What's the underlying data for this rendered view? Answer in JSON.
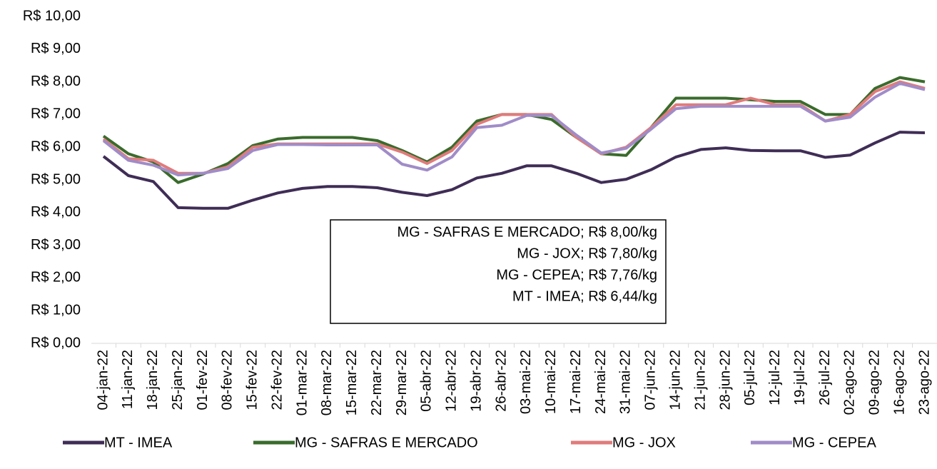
{
  "chart_data": {
    "type": "line",
    "categories": [
      "04-jan-22",
      "11-jan-22",
      "18-jan-22",
      "25-jan-22",
      "01-fev-22",
      "08-fev-22",
      "15-fev-22",
      "22-fev-22",
      "01-mar-22",
      "08-mar-22",
      "15-mar-22",
      "22-mar-22",
      "29-mar-22",
      "05-abr-22",
      "12-abr-22",
      "19-abr-22",
      "26-abr-22",
      "03-mai-22",
      "10-mai-22",
      "17-mai-22",
      "24-mai-22",
      "31-mai-22",
      "07-jun-22",
      "14-jun-22",
      "21-jun-22",
      "28-jun-22",
      "05-jul-22",
      "12-jul-22",
      "19-jul-22",
      "26-jul-22",
      "02-ago-22",
      "09-ago-22",
      "16-ago-22",
      "23-ago-22"
    ],
    "series": [
      {
        "name": "MT - IMEA",
        "color": "#3f2d56",
        "values": [
          5.72,
          5.13,
          4.95,
          4.15,
          4.13,
          4.13,
          4.38,
          4.6,
          4.74,
          4.8,
          4.8,
          4.76,
          4.62,
          4.52,
          4.7,
          5.06,
          5.2,
          5.43,
          5.43,
          5.2,
          4.92,
          5.02,
          5.31,
          5.7,
          5.93,
          5.98,
          5.9,
          5.89,
          5.89,
          5.69,
          5.76,
          6.13,
          6.46,
          6.44
        ]
      },
      {
        "name": "MG - SAFRAS E MERCADO",
        "color": "#3a6b2c",
        "values": [
          6.34,
          5.8,
          5.55,
          4.92,
          5.18,
          5.5,
          6.05,
          6.25,
          6.3,
          6.3,
          6.3,
          6.2,
          5.9,
          5.55,
          6.0,
          6.8,
          7.0,
          7.0,
          6.85,
          6.3,
          5.8,
          5.75,
          6.6,
          7.5,
          7.5,
          7.5,
          7.45,
          7.4,
          7.4,
          7.0,
          7.0,
          7.8,
          8.13,
          8.0
        ]
      },
      {
        "name": "MG - JOX",
        "color": "#e07b7b",
        "values": [
          6.25,
          5.65,
          5.6,
          5.2,
          5.2,
          5.4,
          6.0,
          6.1,
          6.1,
          6.1,
          6.1,
          6.1,
          5.85,
          5.5,
          5.9,
          6.7,
          7.0,
          7.0,
          7.0,
          6.3,
          5.8,
          6.0,
          6.6,
          7.3,
          7.3,
          7.3,
          7.5,
          7.3,
          7.3,
          6.8,
          7.0,
          7.7,
          8.0,
          7.8
        ]
      },
      {
        "name": "MG - CEPEA",
        "color": "#a08cc8",
        "values": [
          6.2,
          5.6,
          5.45,
          5.15,
          5.2,
          5.35,
          5.9,
          6.08,
          6.08,
          6.07,
          6.07,
          6.07,
          5.48,
          5.3,
          5.7,
          6.6,
          6.67,
          6.97,
          6.97,
          6.37,
          5.82,
          5.97,
          6.55,
          7.18,
          7.25,
          7.25,
          7.25,
          7.25,
          7.25,
          6.8,
          6.92,
          7.53,
          7.95,
          7.76
        ]
      }
    ],
    "ylim": [
      0,
      10
    ],
    "yticks": [
      {
        "value": 0,
        "label": "R$ 0,00"
      },
      {
        "value": 1,
        "label": "R$ 1,00"
      },
      {
        "value": 2,
        "label": "R$ 2,00"
      },
      {
        "value": 3,
        "label": "R$ 3,00"
      },
      {
        "value": 4,
        "label": "R$ 4,00"
      },
      {
        "value": 5,
        "label": "R$ 5,00"
      },
      {
        "value": 6,
        "label": "R$ 6,00"
      },
      {
        "value": 7,
        "label": "R$ 7,00"
      },
      {
        "value": 8,
        "label": "R$ 8,00"
      },
      {
        "value": 9,
        "label": "R$ 9,00"
      },
      {
        "value": 10,
        "label": "R$ 10,00"
      }
    ],
    "annotations": [
      "MG - SAFRAS E MERCADO; R$ 8,00/kg",
      "MG - JOX; R$ 7,80/kg",
      "MG - CEPEA; R$ 7,76/kg",
      "MT - IMEA; R$ 6,44/kg"
    ],
    "legend": "bottom"
  }
}
